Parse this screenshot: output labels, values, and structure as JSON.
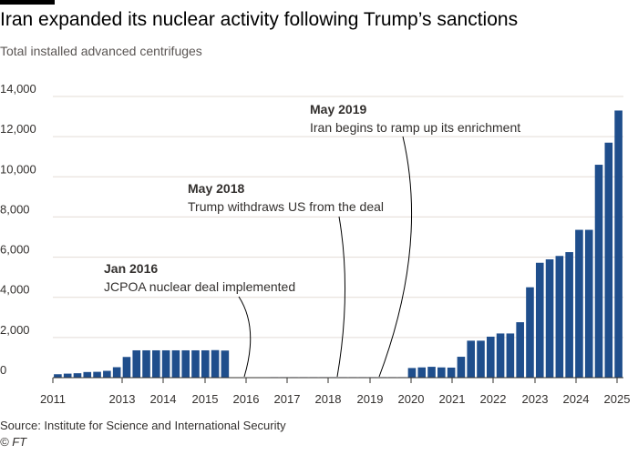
{
  "header": {
    "title": "Iran expanded its nuclear activity following Trump’s sanctions",
    "subtitle": "Total installed advanced centrifuges"
  },
  "footer": {
    "source": "Source: Institute for Science and International Security",
    "credit": "© FT"
  },
  "colors": {
    "bar": "#1f4e8c",
    "small_bar": "#b8c4d6",
    "grid": "#e3dcd6",
    "axis": "#33302e"
  },
  "chart_data": {
    "type": "bar",
    "title": "Iran expanded its nuclear activity following Trump’s sanctions",
    "subtitle": "Total installed advanced centrifuges",
    "xlabel": "",
    "ylabel": "",
    "ylim": [
      0,
      14000
    ],
    "yticks": [
      0,
      2000,
      4000,
      6000,
      8000,
      10000,
      12000,
      14000
    ],
    "ytick_labels": [
      "0",
      "2,000",
      "4,000",
      "6,000",
      "8,000",
      "10,000",
      "12,000",
      "14,000"
    ],
    "xticks": [
      "2011",
      "2013",
      "2014",
      "2015",
      "2016",
      "2017",
      "2018",
      "2019",
      "2020",
      "2021",
      "2022",
      "2023",
      "2024",
      "2025"
    ],
    "grid": true,
    "values": [
      170,
      200,
      220,
      280,
      290,
      340,
      520,
      1030,
      1360,
      1360,
      1360,
      1360,
      1360,
      1360,
      1360,
      1360,
      1370,
      1350,
      0,
      0,
      0,
      0,
      30,
      30,
      30,
      30,
      30,
      30,
      30,
      30,
      30,
      30,
      30,
      30,
      30,
      30,
      480,
      510,
      540,
      510,
      500,
      1040,
      1840,
      1840,
      2040,
      2200,
      2200,
      2760,
      4500,
      5720,
      5890,
      6060,
      6250,
      7360,
      7360,
      10600,
      11700,
      13300
    ],
    "annotations": [
      {
        "date": "Jan 2016",
        "text": "JCPOA nuclear deal implemented"
      },
      {
        "date": "May 2018",
        "text": "Trump withdraws US from the deal"
      },
      {
        "date": "May 2019",
        "text": "Iran begins to ramp up its enrichment"
      }
    ]
  }
}
